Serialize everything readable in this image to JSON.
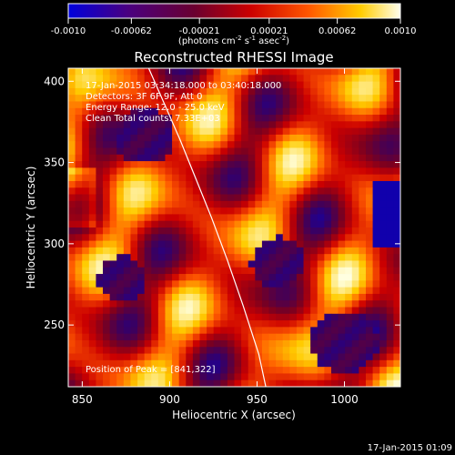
{
  "chart_data": {
    "type": "heatmap",
    "title": "Reconstructed RHESSI Image",
    "xlabel": "Heliocentric X (arcsec)",
    "ylabel": "Heliocentric Y (arcsec)",
    "xlim": [
      842,
      1032
    ],
    "ylim": [
      212,
      408
    ],
    "x_ticks": [
      850,
      900,
      950,
      1000
    ],
    "y_ticks": [
      250,
      300,
      350,
      400
    ],
    "colorbar": {
      "range": [
        -0.001,
        0.001
      ],
      "tick_values": [
        -0.001,
        -0.00062,
        -0.00021,
        0.00021,
        0.00062,
        0.001
      ],
      "tick_labels": [
        "-0.0010",
        "-0.00062",
        "-0.00021",
        "0.00021",
        "0.00062",
        "0.0010"
      ],
      "units_text": "(photons cm",
      "units_sup1": "-2",
      "units_mid": " s",
      "units_sup2": "-1",
      "units_mid2": " asec",
      "units_sup3": "-2",
      "units_end": ")",
      "colors": [
        "#0000cc",
        "#3a0060",
        "#7a0020",
        "#cc0000",
        "#ff5a00",
        "#ffcc00",
        "#ffffe0"
      ]
    },
    "info_lines": [
      "17-Jan-2015 03:34:18.000 to 03:40:18.000",
      "Detectors: 3F 6F 9F, Att 0",
      "Energy Range: 12.0 - 25.0 keV",
      "Clean     Total counts: 7.33E+03"
    ],
    "peak_label": "Position of Peak = [841,322]",
    "limb_x": [
      888,
      897,
      906,
      915,
      924,
      933,
      942,
      951,
      955
    ],
    "limb_y": [
      408,
      386,
      364,
      340,
      316,
      290,
      262,
      232,
      212
    ]
  },
  "footer_timestamp": "17-Jan-2015 01:09"
}
